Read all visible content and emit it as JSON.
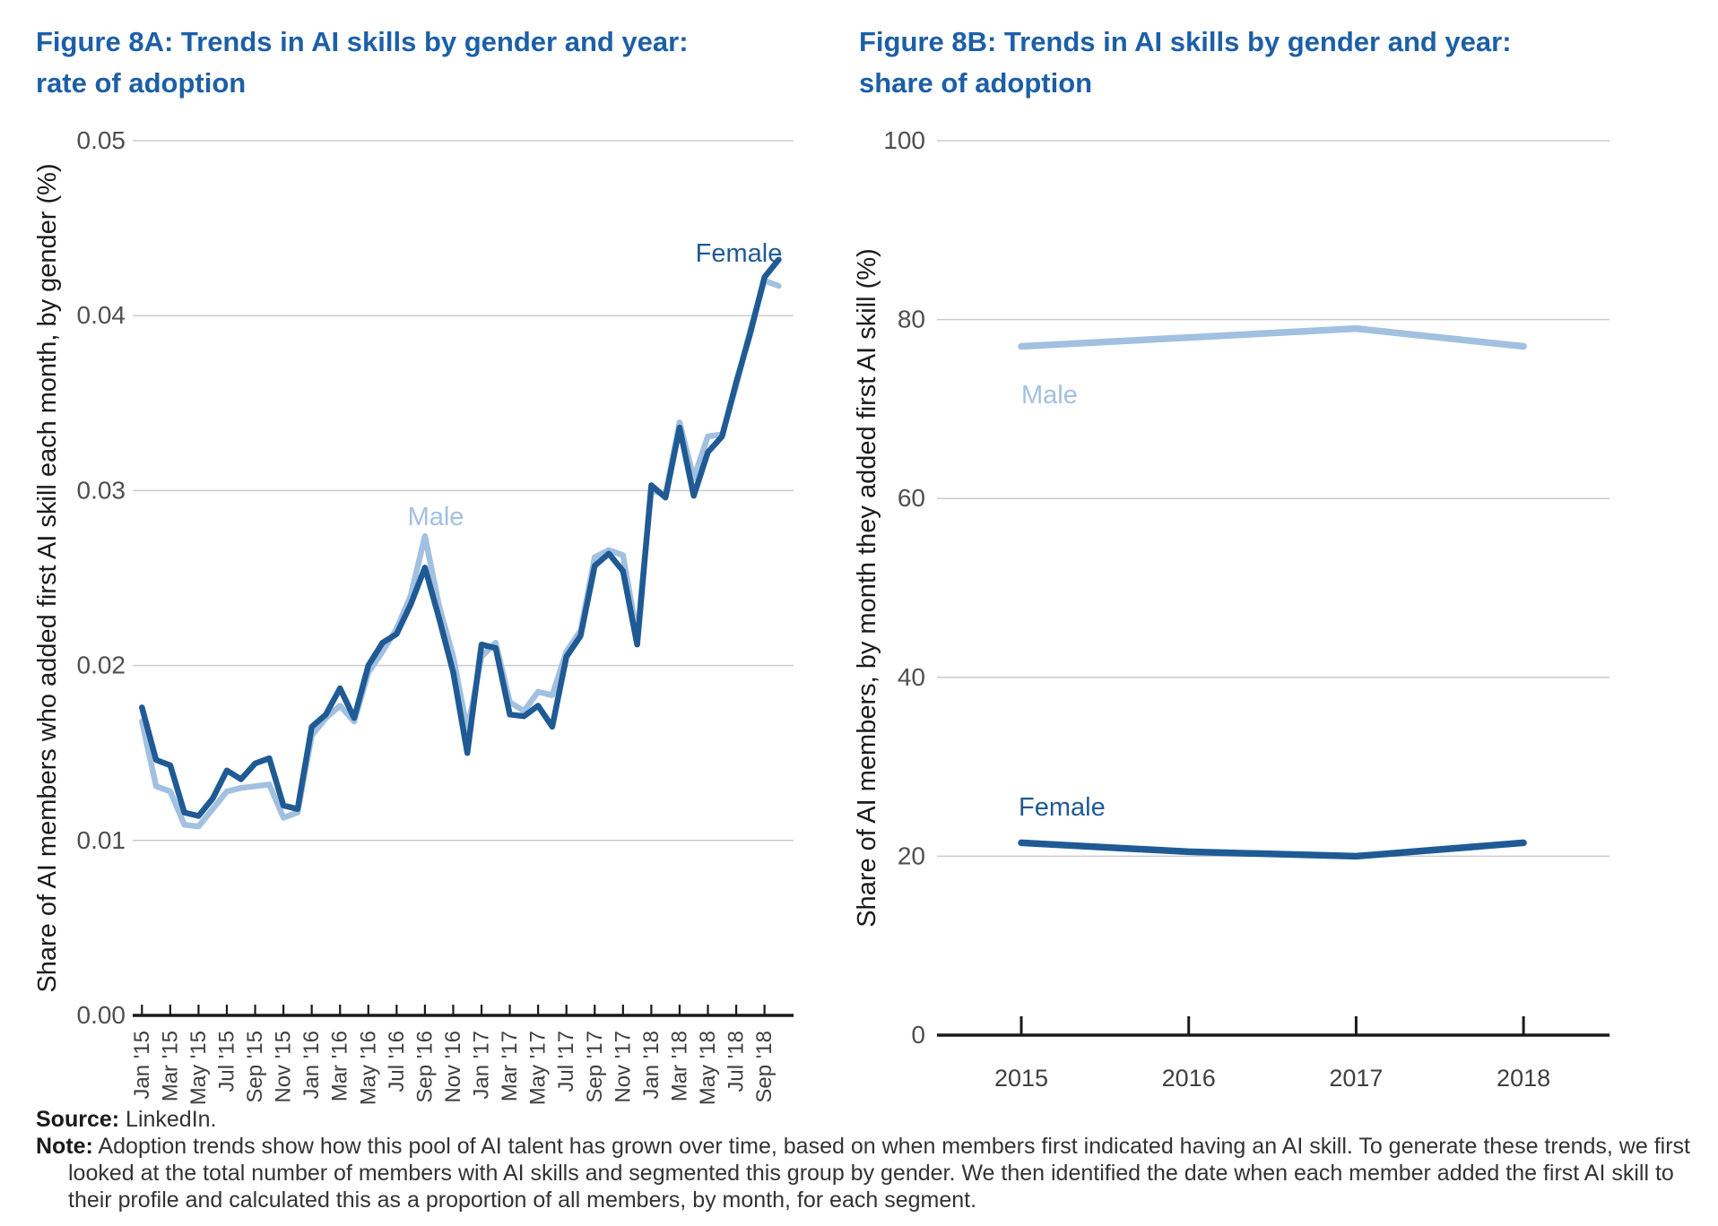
{
  "colors": {
    "title": "#1c5fa8",
    "female": "#1f5a94",
    "male": "#a2c0e0",
    "grid": "#cccccc",
    "axis": "#1a1a1a",
    "y_tick_label": "#4f4f4f",
    "x_tick_label": "#3f3f3f",
    "axis_title": "#1b1b1b"
  },
  "chart_data": [
    {
      "type": "line",
      "title": "Figure 8A: Trends in AI skills by gender and year: rate of adoption",
      "title_lines": [
        "Figure 8A: Trends in AI skills by gender and year:",
        "rate of adoption"
      ],
      "xlabel": "",
      "ylabel": "Share of AI members who added first AI skill each month, by gender (%)",
      "ylim": [
        0,
        0.05
      ],
      "yticks": [
        0,
        0.01,
        0.02,
        0.03,
        0.04,
        0.05
      ],
      "ytick_labels": [
        "0.00",
        "0.01",
        "0.02",
        "0.03",
        "0.04",
        "0.05"
      ],
      "grid": "horizontal",
      "legend": "inline-labels",
      "categories": [
        "Jan '15",
        "Feb '15",
        "Mar '15",
        "Apr '15",
        "May '15",
        "Jun '15",
        "Jul '15",
        "Aug '15",
        "Sep '15",
        "Oct '15",
        "Nov '15",
        "Dec '15",
        "Jan '16",
        "Feb '16",
        "Mar '16",
        "Apr '16",
        "May '16",
        "Jun '16",
        "Jul '16",
        "Aug '16",
        "Sep '16",
        "Oct '16",
        "Nov '16",
        "Dec '16",
        "Jan '17",
        "Feb '17",
        "Mar '17",
        "Apr '17",
        "May '17",
        "Jun '17",
        "Jul '17",
        "Aug '17",
        "Sep '17",
        "Oct '17",
        "Nov '17",
        "Dec '17",
        "Jan '18",
        "Feb '18",
        "Mar '18",
        "Apr '18",
        "May '18",
        "Jun '18",
        "Jul '18",
        "Aug '18",
        "Sep '18",
        "Oct '18"
      ],
      "x_tick_labels": [
        "Jan '15",
        "Mar '15",
        "May '15",
        "Jul '15",
        "Sep '15",
        "Nov '15",
        "Jan '16",
        "Mar '16",
        "May '16",
        "Jul '16",
        "Sep '16",
        "Nov '16",
        "Jan '17",
        "Mar '17",
        "May '17",
        "Jul '17",
        "Sep '17",
        "Nov '17",
        "Jan '18",
        "Mar '18",
        "May '18",
        "Jul '18",
        "Sep '18"
      ],
      "series": [
        {
          "name": "Male",
          "color": "#a2c0e0",
          "values": [
            0.0168,
            0.0131,
            0.0128,
            0.0109,
            0.0108,
            0.0118,
            0.0128,
            0.013,
            0.0131,
            0.0132,
            0.0113,
            0.0116,
            0.016,
            0.017,
            0.0177,
            0.0168,
            0.0196,
            0.0208,
            0.0221,
            0.024,
            0.0274,
            0.0234,
            0.0205,
            0.0163,
            0.0205,
            0.0213,
            0.0179,
            0.0174,
            0.0185,
            0.0183,
            0.0208,
            0.022,
            0.0262,
            0.0266,
            0.0263,
            0.0217,
            0.03,
            0.0298,
            0.0339,
            0.0307,
            0.0331,
            0.0332,
            0.036,
            0.0392,
            0.042,
            0.0417
          ]
        },
        {
          "name": "Female",
          "color": "#1f5a94",
          "values": [
            0.0176,
            0.0146,
            0.0143,
            0.0116,
            0.0114,
            0.0124,
            0.014,
            0.0135,
            0.0144,
            0.0147,
            0.012,
            0.0118,
            0.0165,
            0.0172,
            0.0187,
            0.017,
            0.02,
            0.0213,
            0.0218,
            0.0235,
            0.0256,
            0.0227,
            0.0196,
            0.015,
            0.0212,
            0.021,
            0.0172,
            0.0171,
            0.0177,
            0.0165,
            0.0205,
            0.0217,
            0.0257,
            0.0264,
            0.0254,
            0.0212,
            0.0303,
            0.0296,
            0.0336,
            0.0297,
            0.0322,
            0.0331,
            0.0362,
            0.039,
            0.0422,
            0.0432
          ]
        }
      ]
    },
    {
      "type": "line",
      "title": "Figure 8B: Trends in AI skills by gender and year: share of adoption",
      "title_lines": [
        "Figure 8B: Trends in AI skills by gender and year:",
        "share of adoption"
      ],
      "xlabel": "",
      "ylabel": "Share of AI members, by month they added first AI skill (%)",
      "ylim": [
        0,
        100
      ],
      "yticks": [
        0,
        20,
        40,
        60,
        80,
        100
      ],
      "ytick_labels": [
        "0",
        "20",
        "40",
        "60",
        "80",
        "100"
      ],
      "grid": "horizontal",
      "legend": "inline-labels",
      "categories": [
        "2015",
        "2016",
        "2017",
        "2018"
      ],
      "x_tick_labels": [
        "2015",
        "2016",
        "2017",
        "2018"
      ],
      "series": [
        {
          "name": "Male",
          "color": "#a2c0e0",
          "values": [
            77,
            78,
            79,
            77
          ]
        },
        {
          "name": "Female",
          "color": "#1f5a94",
          "values": [
            21.5,
            20.5,
            20,
            21.5
          ]
        }
      ]
    }
  ],
  "footer": {
    "source_label": "Source:",
    "source_text": " LinkedIn.",
    "note_label": "Note:",
    "note_text": " Adoption trends show how this pool of AI talent has grown over time, based on when members first indicated having an AI skill. To generate these trends, we first looked at the total number of members with AI skills and segmented this group by gender. We then identified the date when each member added the first AI skill to their profile and calculated this as a proportion of all members, by month, for each segment."
  }
}
